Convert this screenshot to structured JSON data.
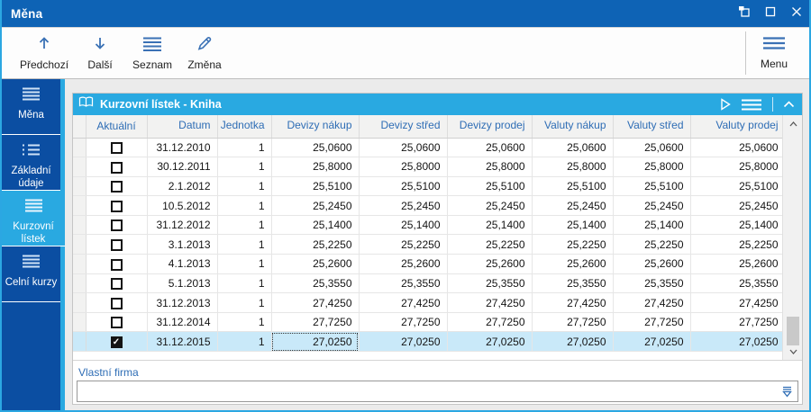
{
  "window": {
    "title": "Měna",
    "controls": [
      "restore-window",
      "maximize-window",
      "close-window"
    ]
  },
  "toolbar": {
    "buttons": [
      {
        "icon": "arrow-up-icon",
        "label": "Předchozí"
      },
      {
        "icon": "arrow-down-icon",
        "label": "Další"
      },
      {
        "icon": "list-lines-icon",
        "label": "Seznam"
      },
      {
        "icon": "pencil-icon",
        "label": "Změna"
      }
    ],
    "menu_button": {
      "icon": "hamburger-icon",
      "label": "Menu"
    }
  },
  "sidebar": {
    "items": [
      {
        "label": "Měna",
        "icon": "menu-lines-icon",
        "active": false
      },
      {
        "label": "Základní údaje",
        "icon": "list-dots-icon",
        "active": false
      },
      {
        "label": "Kurzovní lístek",
        "icon": "menu-lines-icon",
        "active": true
      },
      {
        "label": "Celní kurzy",
        "icon": "menu-lines-icon",
        "active": false
      }
    ]
  },
  "panel": {
    "title": "Kurzovní lístek - Kniha",
    "icon": "open-book-icon",
    "header_icons": [
      "play-icon",
      "hamburger-icon",
      "chevron-up-icon"
    ]
  },
  "table": {
    "columns": [
      "",
      "Aktuální",
      "Datum",
      "Jednotka",
      "Devizy nákup",
      "Devizy střed",
      "Devizy prodej",
      "Valuty nákup",
      "Valuty střed",
      "Valuty prodej"
    ],
    "rows": [
      {
        "checked": false,
        "selected": false,
        "cells": [
          "31.12.2010",
          "1",
          "25,0600",
          "25,0600",
          "25,0600",
          "25,0600",
          "25,0600",
          "25,0600"
        ]
      },
      {
        "checked": false,
        "selected": false,
        "cells": [
          "30.12.2011",
          "1",
          "25,8000",
          "25,8000",
          "25,8000",
          "25,8000",
          "25,8000",
          "25,8000"
        ]
      },
      {
        "checked": false,
        "selected": false,
        "cells": [
          "2.1.2012",
          "1",
          "25,5100",
          "25,5100",
          "25,5100",
          "25,5100",
          "25,5100",
          "25,5100"
        ]
      },
      {
        "checked": false,
        "selected": false,
        "cells": [
          "10.5.2012",
          "1",
          "25,2450",
          "25,2450",
          "25,2450",
          "25,2450",
          "25,2450",
          "25,2450"
        ]
      },
      {
        "checked": false,
        "selected": false,
        "cells": [
          "31.12.2012",
          "1",
          "25,1400",
          "25,1400",
          "25,1400",
          "25,1400",
          "25,1400",
          "25,1400"
        ]
      },
      {
        "checked": false,
        "selected": false,
        "cells": [
          "3.1.2013",
          "1",
          "25,2250",
          "25,2250",
          "25,2250",
          "25,2250",
          "25,2250",
          "25,2250"
        ]
      },
      {
        "checked": false,
        "selected": false,
        "cells": [
          "4.1.2013",
          "1",
          "25,2600",
          "25,2600",
          "25,2600",
          "25,2600",
          "25,2600",
          "25,2600"
        ]
      },
      {
        "checked": false,
        "selected": false,
        "cells": [
          "5.1.2013",
          "1",
          "25,3550",
          "25,3550",
          "25,3550",
          "25,3550",
          "25,3550",
          "25,3550"
        ]
      },
      {
        "checked": false,
        "selected": false,
        "cells": [
          "31.12.2013",
          "1",
          "27,4250",
          "27,4250",
          "27,4250",
          "27,4250",
          "27,4250",
          "27,4250"
        ]
      },
      {
        "checked": false,
        "selected": false,
        "cells": [
          "31.12.2014",
          "1",
          "27,7250",
          "27,7250",
          "27,7250",
          "27,7250",
          "27,7250",
          "27,7250"
        ]
      },
      {
        "checked": true,
        "selected": true,
        "focused_col": 2,
        "cells": [
          "31.12.2015",
          "1",
          "27,0250",
          "27,0250",
          "27,0250",
          "27,0250",
          "27,0250",
          "27,0250"
        ]
      }
    ]
  },
  "footer": {
    "label": "Vlastní firma",
    "value": "",
    "icon": "dropdown-icon"
  },
  "colors": {
    "accent": "#29A9E1",
    "titlebar": "#0E63B5",
    "sidebar": "#0B4EA2",
    "selected_row": "#C9E9F9",
    "header_text": "#2E6DB5",
    "toolbar_icon": "#3A71B5"
  }
}
